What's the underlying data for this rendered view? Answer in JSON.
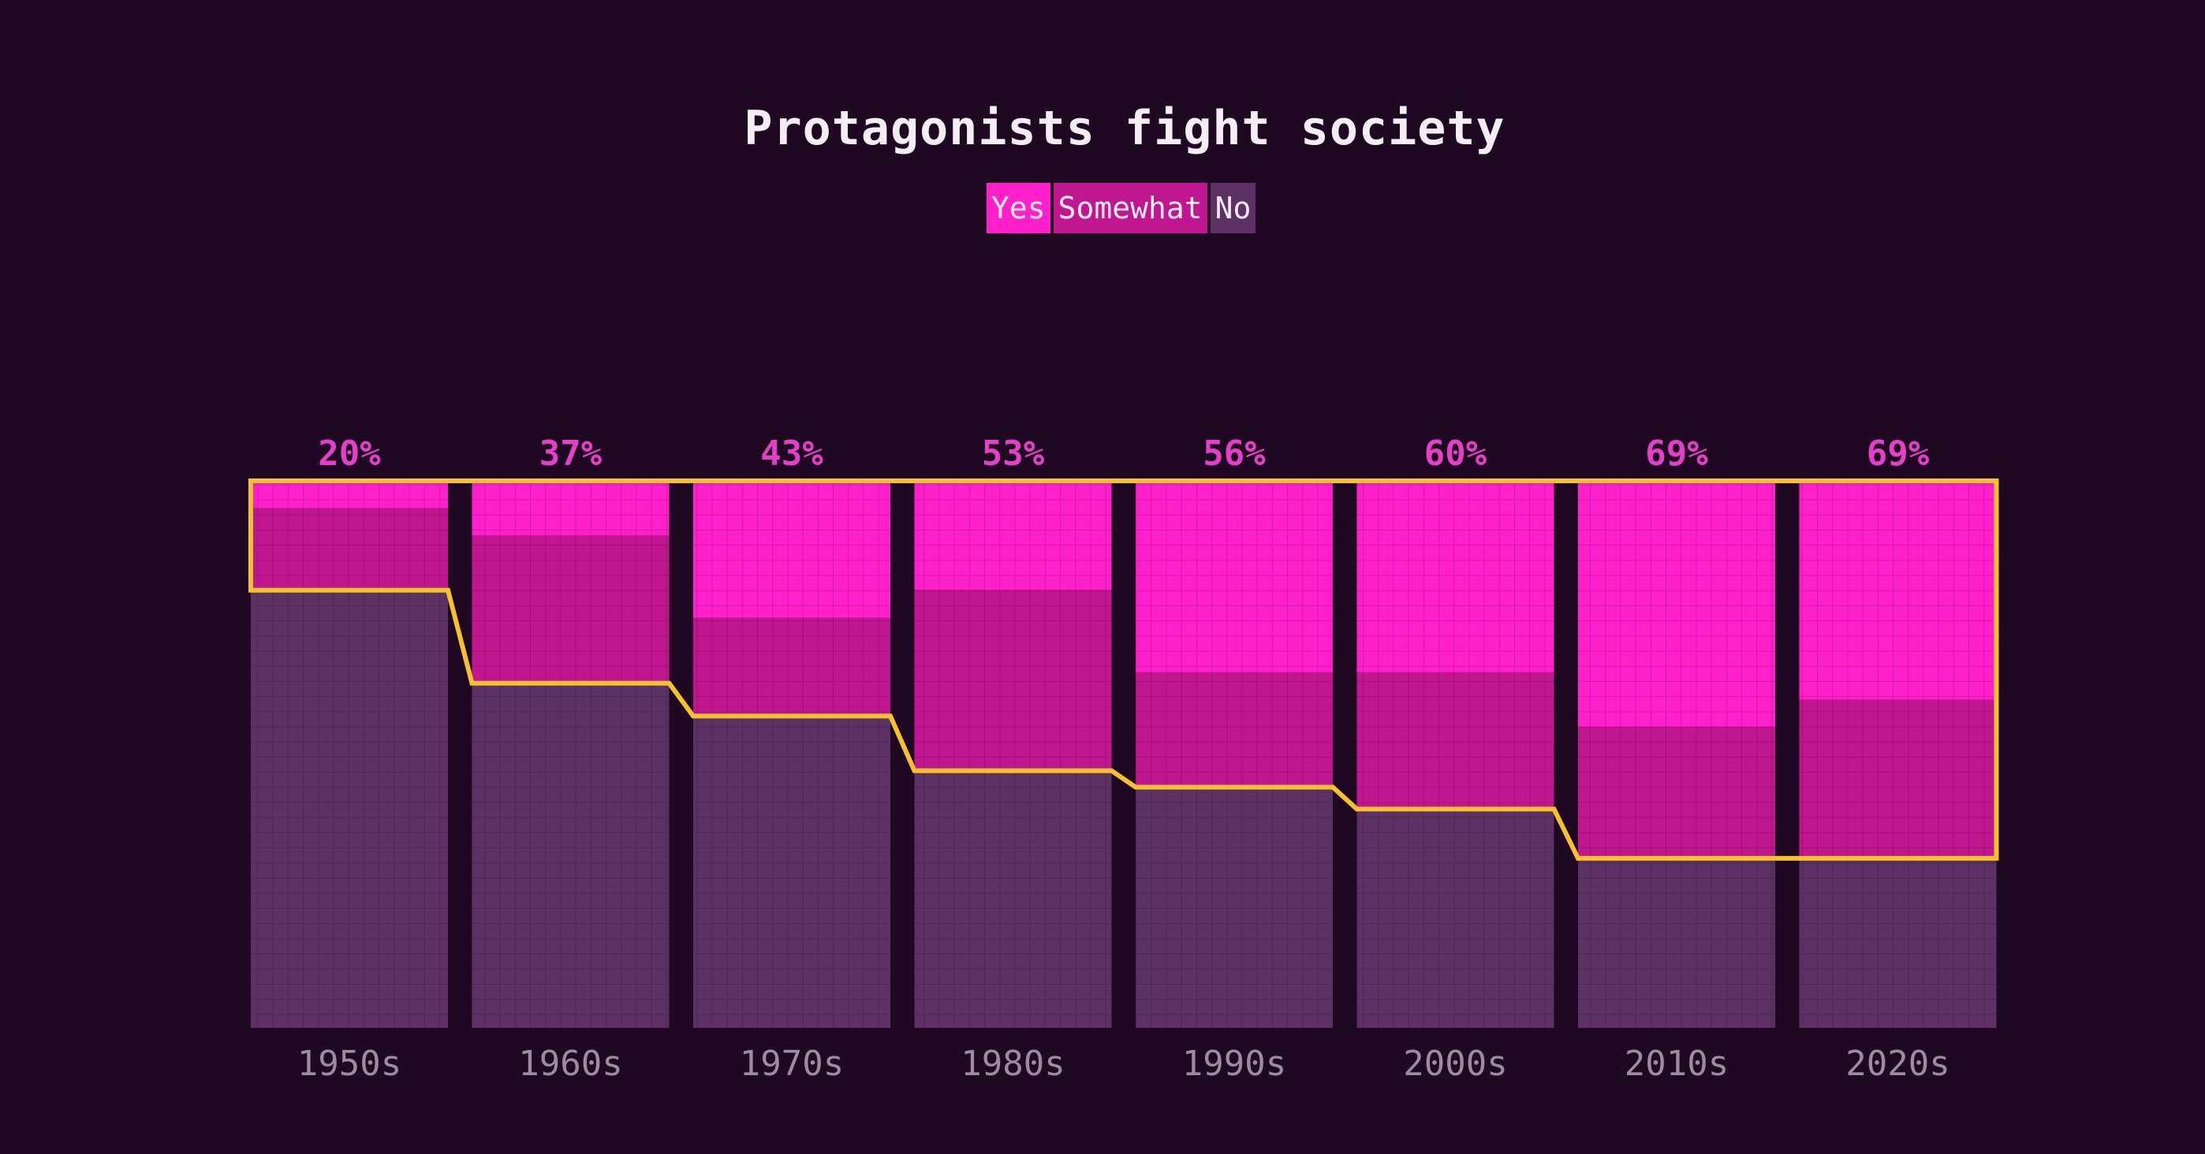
{
  "chart_data": {
    "type": "bar",
    "title": "Protagonists fight society",
    "categories": [
      "1950s",
      "1960s",
      "1970s",
      "1980s",
      "1990s",
      "2000s",
      "2010s",
      "2020s"
    ],
    "series": [
      {
        "name": "Yes",
        "values": [
          5,
          10,
          25,
          20,
          35,
          35,
          45,
          40
        ]
      },
      {
        "name": "Somewhat",
        "values": [
          15,
          27,
          18,
          33,
          21,
          25,
          24,
          29
        ]
      },
      {
        "name": "No",
        "values": [
          80,
          63,
          57,
          47,
          44,
          40,
          31,
          31
        ]
      }
    ],
    "labels": [
      "20%",
      "37%",
      "43%",
      "53%",
      "56%",
      "60%",
      "69%",
      "69%"
    ],
    "ylim": [
      0,
      100
    ],
    "stacked": true,
    "legend_position": "top-center",
    "colors": {
      "Yes": "#ff1fcb",
      "Somewhat": "#c0168f",
      "No": "#5c3163",
      "outline": "#f6c12f",
      "label": "#e43fc7",
      "category": "#9c8c9f"
    }
  }
}
